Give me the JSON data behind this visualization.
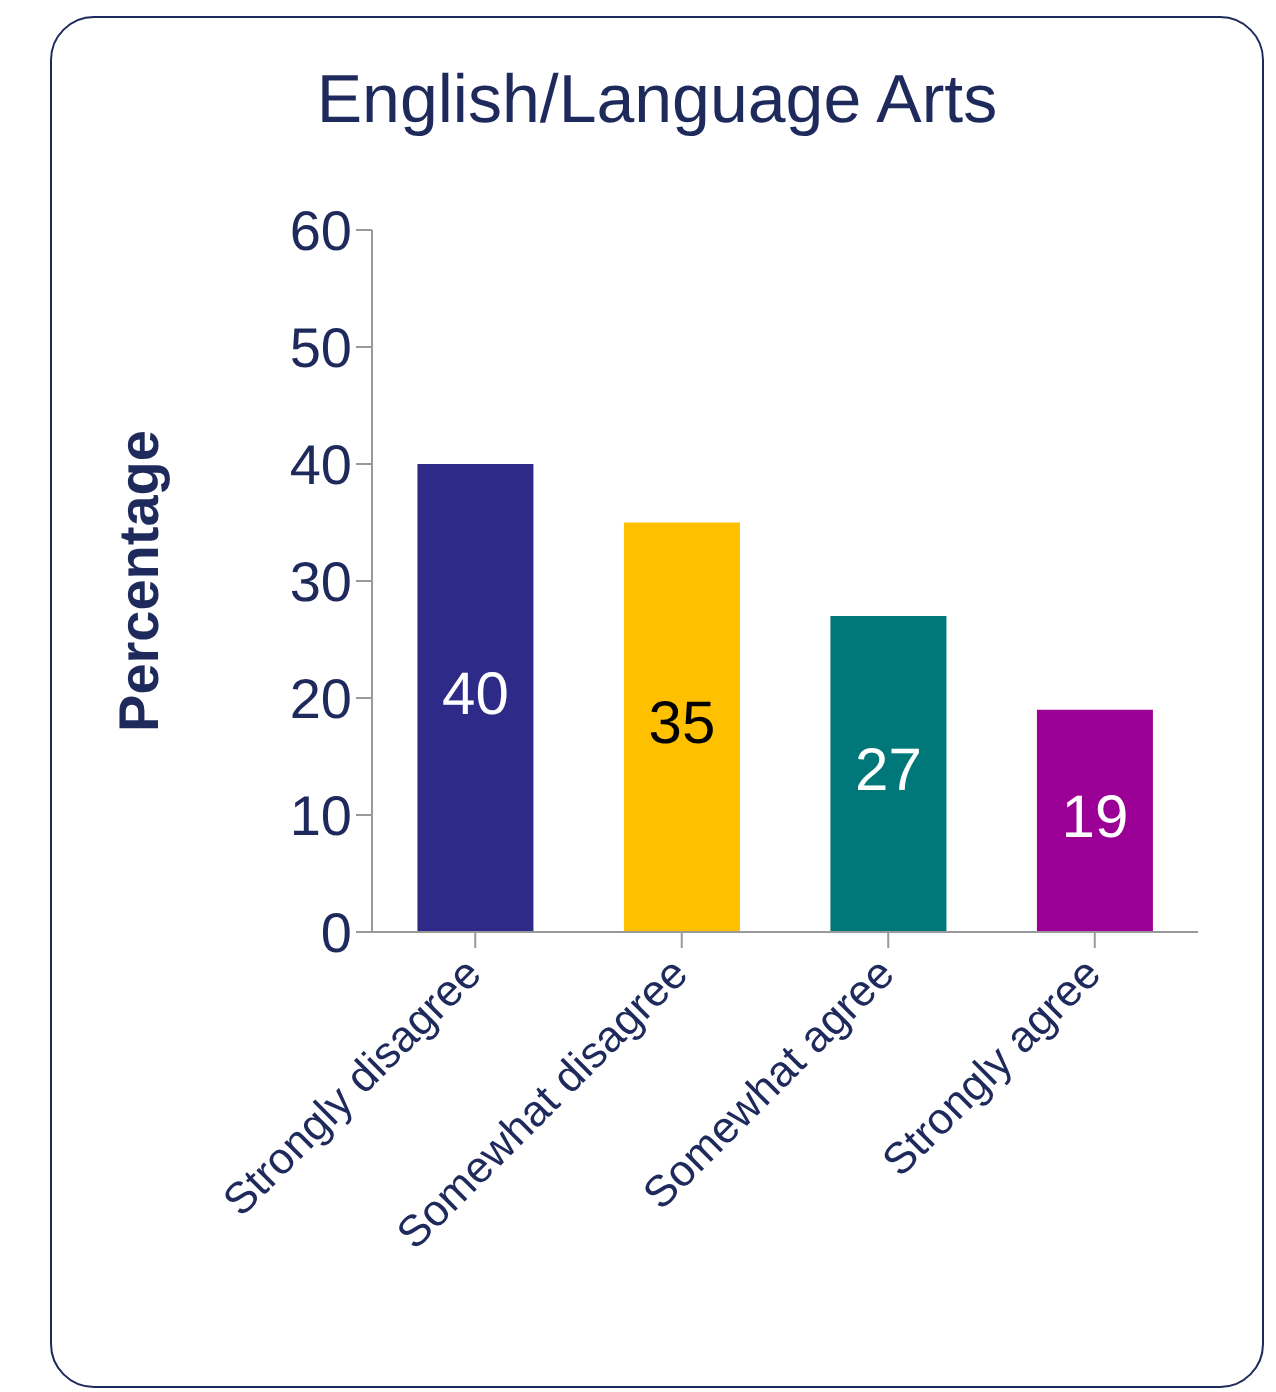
{
  "chart_data": {
    "type": "bar",
    "title": "English/Language Arts",
    "ylabel": "Percentage",
    "categories": [
      "Strongly disagree",
      "Somewhat disagree",
      "Somewhat agree",
      "Strongly agree"
    ],
    "values": [
      40,
      35,
      27,
      19
    ],
    "colors": [
      "#2e2a87",
      "#ffc000",
      "#00787a",
      "#9b0096"
    ],
    "ylim": [
      0,
      60
    ],
    "yticks": [
      0,
      10,
      20,
      30,
      40,
      50,
      60
    ],
    "data_labels": true,
    "grid": false,
    "legend": false
  }
}
